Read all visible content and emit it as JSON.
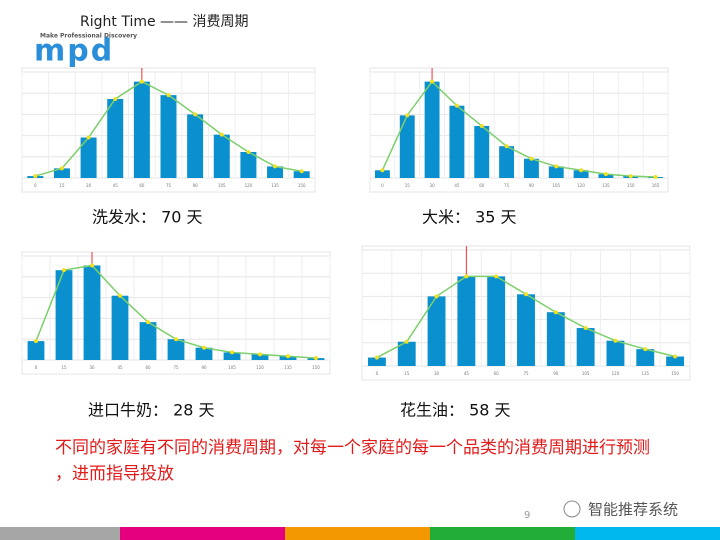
{
  "title": "Right Time —— 消费周期",
  "logo": {
    "tagline": "Make Professional Discovery",
    "mark": "mpd"
  },
  "charts": [
    {
      "type": "bar",
      "caption": "洗发水： 70 天",
      "categories": [
        "0",
        "15",
        "30",
        "45",
        "60",
        "75",
        "90",
        "105",
        "120",
        "135",
        "150"
      ],
      "values": [
        2,
        10,
        42,
        82,
        100,
        86,
        66,
        45,
        27,
        12,
        7
      ],
      "ylim": [
        0,
        110
      ],
      "color": "#0a8fcf",
      "line_color": "#7ccf6a"
    },
    {
      "type": "bar",
      "caption": "大米： 35 天",
      "categories": [
        "0",
        "15",
        "30",
        "45",
        "60",
        "75",
        "90",
        "105",
        "120",
        "135",
        "150",
        "165"
      ],
      "values": [
        8,
        65,
        100,
        75,
        54,
        33,
        20,
        12,
        8,
        4,
        2,
        1
      ],
      "ylim": [
        0,
        110
      ],
      "color": "#0a8fcf",
      "line_color": "#7ccf6a"
    },
    {
      "type": "bar",
      "caption": "进口牛奶： 28 天",
      "categories": [
        "0",
        "15",
        "30",
        "45",
        "60",
        "75",
        "90",
        "105",
        "120",
        "135",
        "150"
      ],
      "values": [
        20,
        95,
        100,
        68,
        40,
        22,
        13,
        8,
        6,
        4,
        2
      ],
      "ylim": [
        0,
        110
      ],
      "color": "#0a8fcf",
      "line_color": "#7ccf6a"
    },
    {
      "type": "bar",
      "caption": "花生油： 58 天",
      "categories": [
        "0",
        "15",
        "30",
        "45",
        "60",
        "75",
        "90",
        "105",
        "120",
        "135",
        "150"
      ],
      "values": [
        8,
        23,
        66,
        85,
        85,
        68,
        51,
        36,
        24,
        16,
        9
      ],
      "ylim": [
        0,
        110
      ],
      "color": "#0a8fcf",
      "line_color": "#7ccf6a"
    }
  ],
  "note": "不同的家庭有不同的消费周期，对每一个家庭的每一个品类的消费周期进行预测，进而指导投放",
  "page_number": "9",
  "watermark": "智能推荐系统"
}
